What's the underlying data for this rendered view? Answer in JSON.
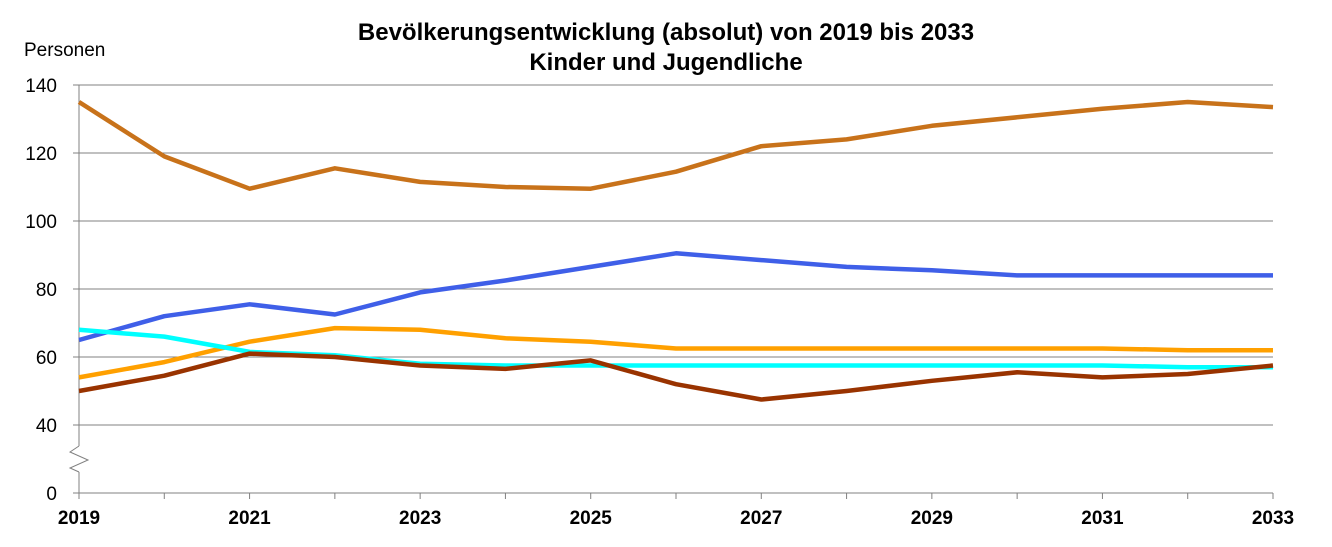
{
  "chart_data": {
    "type": "line",
    "title": "Bevölkerungsentwicklung (absolut) von 2019 bis 2033",
    "subtitle": "Kinder und Jugendliche",
    "ylabel": "Personen",
    "xlabel": "",
    "ylim": [
      0,
      140
    ],
    "y_ticks": [
      "0",
      "40",
      "60",
      "80",
      "100",
      "120",
      "140"
    ],
    "y_axis_break": "between 0 and 40",
    "x": [
      2019,
      2020,
      2021,
      2022,
      2023,
      2024,
      2025,
      2026,
      2027,
      2028,
      2029,
      2030,
      2031,
      2032,
      2033
    ],
    "x_tick_labels": [
      "2019",
      "2021",
      "2023",
      "2025",
      "2027",
      "2029",
      "2031",
      "2033"
    ],
    "grid": true,
    "legend": "none",
    "series": [
      {
        "color": "#C8721A",
        "values": [
          135,
          119,
          109.5,
          115.5,
          111.5,
          110,
          109.5,
          114.5,
          122,
          124,
          128,
          130.5,
          133,
          135,
          133.5
        ]
      },
      {
        "color": "#3F5FE8",
        "values": [
          65,
          72,
          75.5,
          72.5,
          79,
          82.5,
          86.5,
          90.5,
          88.5,
          86.5,
          85.5,
          84,
          84,
          84,
          84
        ]
      },
      {
        "color": "#FFA000",
        "values": [
          54,
          58.5,
          64.5,
          68.5,
          68,
          65.5,
          64.5,
          62.5,
          62.5,
          62.5,
          62.5,
          62.5,
          62.5,
          62,
          62
        ]
      },
      {
        "color": "#00FFFF",
        "values": [
          68,
          66,
          61.5,
          60.5,
          58,
          57.5,
          57.5,
          57.5,
          57.5,
          57.5,
          57.5,
          57.5,
          57.5,
          57,
          57
        ]
      },
      {
        "color": "#993300",
        "values": [
          50,
          54.5,
          61,
          60,
          57.5,
          56.5,
          59,
          52,
          47.5,
          50,
          53,
          55.5,
          54,
          55,
          57.5
        ]
      }
    ]
  }
}
